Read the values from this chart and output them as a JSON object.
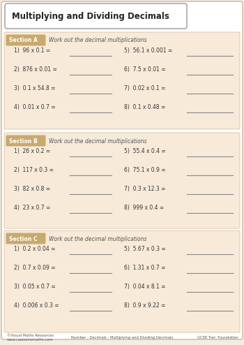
{
  "title": "Multiplying and Dividing Decimals",
  "bg_color": "#f5ede0",
  "card_bg": "#ffffff",
  "section_bg": "#f7ead8",
  "section_label_bg": "#c8a96e",
  "sections": [
    {
      "label": "Section A",
      "instruction": "Work out the decimal multiplications",
      "questions_left": [
        "1)  96 x 0.1 =",
        "2)  876 x 0.01 =",
        "3)  0.1 x 54.8 =",
        "4)  0.01 x 0.7 ="
      ],
      "questions_right": [
        "5)  56.1 x 0.001 =",
        "6)  7.5 x 0.01 =",
        "7)  0.02 x 0.1 =",
        "8)  0.1 x 0.48 ="
      ]
    },
    {
      "label": "Section B",
      "instruction": "Work out the decimal multiplications",
      "questions_left": [
        "1)  26 x 0.2 =",
        "2)  117 x 0.3 =",
        "3)  82 x 0.8 =",
        "4)  23 x 0.7 ="
      ],
      "questions_right": [
        "5)  55.4 x 0.4 =",
        "6)  75.1 x 0.9 =",
        "7)  0.3 x 12.3 =",
        "8)  999 x 0.4 ="
      ]
    },
    {
      "label": "Section C",
      "instruction": "Work out the decimal multiplications",
      "questions_left": [
        "1)  0.2 x 0.04 =",
        "2)  0.7 x 0.09 =",
        "3)  0.05 x 0.7 =",
        "4)  0.006 x 0.3 ="
      ],
      "questions_right": [
        "5)  5.67 x 0.3 =",
        "6)  1.31 x 0.7 =",
        "7)  0.04 x 8.1 =",
        "8)  0.9 x 9.22 ="
      ]
    }
  ],
  "footer_left1": "©Visual Maths Resources",
  "footer_left2": "www.cazoomsmaths.com",
  "footer_center": "Number - Decimals - Multiplying and Dividing Decimals",
  "footer_right": "GCSE Tier: Foundation"
}
